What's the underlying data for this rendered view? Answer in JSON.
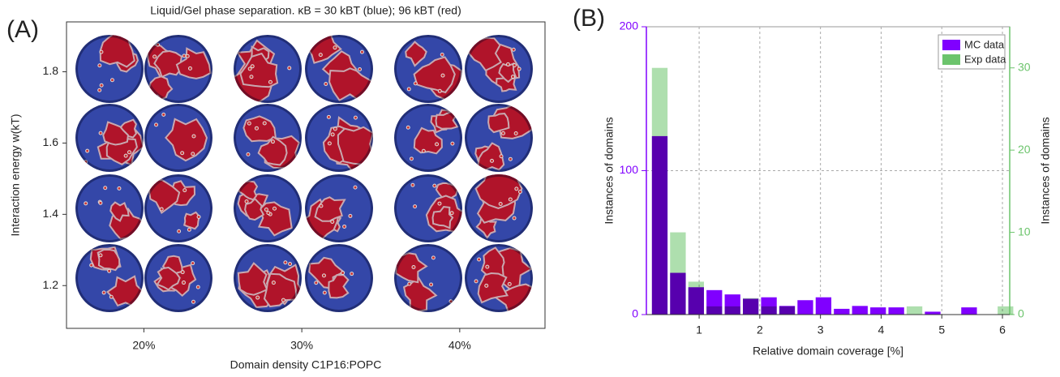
{
  "chart_data": [
    {
      "type": "image",
      "panel_label": "(A)",
      "title": "Liquid/Gel phase separation. κB = 30 kBT (blue); 96 kBT (red)",
      "xlabel": "Domain density C1P16:POPC",
      "ylabel": "Interaction energy w(kT)",
      "xlim": [
        15.1,
        45.4
      ],
      "xticks": [
        {
          "value": 20,
          "label": "20%"
        },
        {
          "value": 30,
          "label": "30%"
        },
        {
          "value": 40,
          "label": "40%"
        }
      ],
      "ylim": [
        1.08,
        1.94
      ],
      "yticks": [
        1.2,
        1.4,
        1.6,
        1.8
      ]
    },
    {
      "type": "bar",
      "panel_label": "(B)",
      "xlabel": "Relative domain coverage [%]",
      "ylabel": "Instances of domains",
      "y2label": "Instances of domains",
      "x": [
        0.35,
        0.65,
        0.95,
        1.25,
        1.55,
        1.85,
        2.15,
        2.45,
        2.75,
        3.05,
        3.35,
        3.65,
        3.95,
        4.25,
        4.55,
        4.85,
        5.15,
        5.45,
        5.75,
        6.05
      ],
      "xlim": [
        0.13,
        6.12
      ],
      "xticks": [
        1,
        2,
        3,
        4,
        5,
        6
      ],
      "ylim": [
        0,
        200
      ],
      "yticks": [
        0,
        100,
        200
      ],
      "y2lim": [
        0,
        35
      ],
      "y2ticks": [
        0,
        10,
        20,
        30
      ],
      "grid": true,
      "legend": "upper right",
      "series": [
        {
          "name": "MC data",
          "color": "#8000ff",
          "values": [
            124,
            29,
            19,
            17,
            14,
            11,
            12,
            6,
            10,
            12,
            4,
            6,
            5,
            5,
            0,
            2,
            0,
            5,
            0,
            0
          ]
        },
        {
          "name": "Exp data",
          "color": "#6cc46c",
          "axis": "y2",
          "values": [
            30,
            10,
            4,
            1,
            1,
            2,
            1,
            1,
            0,
            0,
            0,
            0,
            0,
            0,
            1,
            0,
            0,
            0,
            0,
            1
          ]
        }
      ]
    }
  ]
}
